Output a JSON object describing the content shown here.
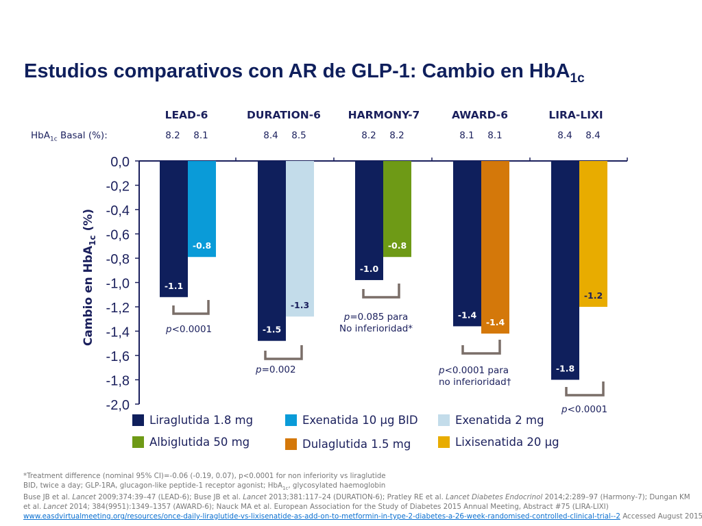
{
  "title": {
    "main": "Estudios comparativos con AR de GLP-1: Cambio en HbA",
    "sub": "1c"
  },
  "baseline": {
    "label_pre": "HbA",
    "label_sub": "1c",
    "label_post": " Basal (%):"
  },
  "studies": [
    {
      "name": "LEAD-6",
      "baseline": [
        "8.2",
        "8.1"
      ]
    },
    {
      "name": "DURATION-6",
      "baseline": [
        "8.4",
        "8.5"
      ]
    },
    {
      "name": "HARMONY-7",
      "baseline": [
        "8.2",
        "8.2"
      ]
    },
    {
      "name": "AWARD-6",
      "baseline": [
        "8.1",
        "8.1"
      ]
    },
    {
      "name": "LIRA-LIXI",
      "baseline": [
        "8.4",
        "8.4"
      ]
    }
  ],
  "chart_data": {
    "type": "bar",
    "ylabel_pre": "Cambio en HbA",
    "ylabel_sub": "1c",
    "ylabel_post": " (%)",
    "ylim": [
      -2.0,
      0.0
    ],
    "yticks": [
      "0,0",
      "-0,2",
      "-0,4",
      "-0,6",
      "-0,8",
      "-1,0",
      "-1,2",
      "-1,4",
      "-1,6",
      "-1,8",
      "-2,0"
    ],
    "categories": [
      "LEAD-6",
      "DURATION-6",
      "HARMONY-7",
      "AWARD-6",
      "LIRA-LIXI"
    ],
    "bars": [
      {
        "study": "LEAD-6",
        "drug": "Liraglutida 1.8 mg",
        "value": -1.12,
        "label": "-1.1"
      },
      {
        "study": "LEAD-6",
        "drug": "Exenatida 10 µg BID",
        "value": -0.79,
        "label": "-0.8"
      },
      {
        "study": "DURATION-6",
        "drug": "Liraglutida 1.8 mg",
        "value": -1.48,
        "label": "-1.5"
      },
      {
        "study": "DURATION-6",
        "drug": "Exenatida 2 mg",
        "value": -1.28,
        "label": "-1.3"
      },
      {
        "study": "HARMONY-7",
        "drug": "Liraglutida 1.8 mg",
        "value": -0.98,
        "label": "-1.0"
      },
      {
        "study": "HARMONY-7",
        "drug": "Albiglutida 50 mg",
        "value": -0.79,
        "label": "-0.8"
      },
      {
        "study": "AWARD-6",
        "drug": "Liraglutida 1.8 mg",
        "value": -1.36,
        "label": "-1.4"
      },
      {
        "study": "AWARD-6",
        "drug": "Dulaglutida 1.5 mg",
        "value": -1.42,
        "label": "-1.4"
      },
      {
        "study": "LIRA-LIXI",
        "drug": "Liraglutida 1.8 mg",
        "value": -1.8,
        "label": "-1.8"
      },
      {
        "study": "LIRA-LIXI",
        "drug": "Lixisenatida 20 µg",
        "value": -1.2,
        "label": "-1.2"
      }
    ],
    "legend": [
      {
        "name": "Liraglutida 1.8 mg",
        "color": "#0f1f5c"
      },
      {
        "name": "Exenatida 10 µg BID",
        "color": "#0a9bd8"
      },
      {
        "name": "Exenatida 2 mg",
        "color": "#c3dcea"
      },
      {
        "name": "Albiglutida 50 mg",
        "color": "#6e9a16"
      },
      {
        "name": "Dulaglutida 1.5 mg",
        "color": "#d4780a"
      },
      {
        "name": "Lixisenatida 20 µg",
        "color": "#e8ac00"
      }
    ],
    "pvalues": [
      {
        "study": "LEAD-6",
        "p": "p",
        "text": "<0.0001",
        "extra": ""
      },
      {
        "study": "DURATION-6",
        "p": "p",
        "text": "=0.002",
        "extra": ""
      },
      {
        "study": "HARMONY-7",
        "p": "p",
        "text": "=0.085 para",
        "extra": "No inferioridad*"
      },
      {
        "study": "AWARD-6",
        "p": "p",
        "text": "<0.0001 para",
        "extra": "no inferioridad†"
      },
      {
        "study": "LIRA-LIXI",
        "p": "p",
        "text": "<0.0001",
        "extra": ""
      }
    ]
  },
  "colors": {
    "axis": "#1a1f5c",
    "bracket": "#7a6e68",
    "title": "#0f1f5c",
    "link": "#0a6fd0"
  },
  "footer": {
    "line1": "*Treatment difference (nominal 95% CI)=-0.06 (-0.19, 0.07), p<0.0001 for non inferiority vs liraglutide",
    "line2": "BID, twice a day; GLP-1RA, glucagon-like peptide-1 receptor agonist; HbA",
    "line2_sub": "1c",
    "line2_end": ", glycosylated haemoglobin",
    "line3a": "Buse JB et al. ",
    "line3b": "Lancet",
    "line3c": " 2009;374:39–47 (LEAD-6); Buse JB et al. ",
    "line3d": "Lancet",
    "line3e": " 2013;381:117–24 (DURATION-6); Pratley RE et al. ",
    "line3f": "Lancet Diabetes Endocrinol",
    "line3g": " 2014;2:289–97 (Harmony-7); Dungan KM",
    "line4a": "et al. ",
    "line4b": "Lancet",
    "line4c": " 2014; 384(9951):1349–1357 (AWARD-6); Nauck MA et al. European Association for the Study of Diabetes 2015 Annual Meeting, Abstract #75  (LIRA-LIXI)",
    "link": "www.easdvirtualmeeting.org/resources/once-daily-liraglutide-vs-lixisenatide-as-add-on-to-metformin-in-type-2-diabetes-a-26-week-randomised-controlled-clinical-trial--2",
    "accessed": " Accessed August 2015."
  }
}
